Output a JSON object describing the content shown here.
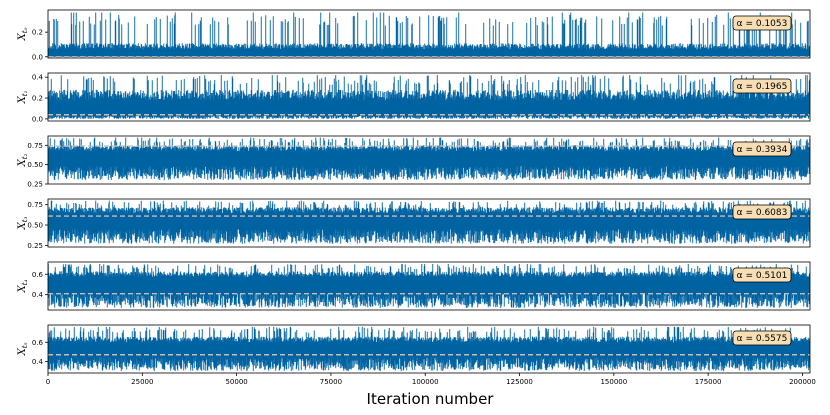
{
  "chart_data": {
    "type": "line",
    "xlabel": "Iteration number",
    "x_range": [
      0,
      202000
    ],
    "x_ticks": [
      0,
      25000,
      50000,
      75000,
      100000,
      125000,
      150000,
      175000,
      200000
    ],
    "x_tick_labels": [
      "0",
      "25000",
      "50000",
      "75000",
      "100000",
      "125000",
      "150000",
      "175000",
      "200000"
    ],
    "line_color": "#0063a1",
    "ref_line_color": "#bfbfbf",
    "annotation_face": "#f7deb4",
    "panels": [
      {
        "ylabel": "X",
        "subscript": "t₀",
        "annotation": "α = 0.1053",
        "ylim": [
          -0.01,
          0.38
        ],
        "yticks": [
          0.0,
          0.2
        ],
        "ytick_labels": [
          "0.0",
          "0.2"
        ],
        "ref_value": 0.0,
        "trace": {
          "base": 0.0,
          "low": 0.0,
          "high": 0.34,
          "typical_high": 0.11,
          "spike_max": 0.36
        }
      },
      {
        "ylabel": "X",
        "subscript": "t₁",
        "annotation": "α = 0.1965",
        "ylim": [
          -0.02,
          0.44
        ],
        "yticks": [
          0.0,
          0.2,
          0.4
        ],
        "ytick_labels": [
          "0.0",
          "0.2",
          "0.4"
        ],
        "ref_value": 0.04,
        "trace": {
          "base": 0.05,
          "low": 0.0,
          "high": 0.42,
          "typical_high": 0.28,
          "spike_max": 0.42
        }
      },
      {
        "ylabel": "X",
        "subscript": "t₂",
        "annotation": "α = 0.3934",
        "ylim": [
          0.25,
          0.87
        ],
        "yticks": [
          0.25,
          0.5,
          0.75
        ],
        "ytick_labels": [
          "0.25",
          "0.50",
          "0.75"
        ],
        "ref_value": 0.74,
        "trace": {
          "base": 0.58,
          "low": 0.3,
          "high": 0.85,
          "typical_high": 0.75,
          "spike_max": 0.85
        }
      },
      {
        "ylabel": "X",
        "subscript": "t₃",
        "annotation": "α = 0.6083",
        "ylim": [
          0.23,
          0.82
        ],
        "yticks": [
          0.25,
          0.5,
          0.75
        ],
        "ytick_labels": [
          "0.25",
          "0.50",
          "0.75"
        ],
        "ref_value": 0.61,
        "trace": {
          "base": 0.55,
          "low": 0.27,
          "high": 0.8,
          "typical_high": 0.72,
          "spike_max": 0.8
        }
      },
      {
        "ylabel": "X",
        "subscript": "t₄",
        "annotation": "α = 0.5101",
        "ylim": [
          0.25,
          0.72
        ],
        "yticks": [
          0.4,
          0.6
        ],
        "ytick_labels": [
          "0.4",
          "0.6"
        ],
        "ref_value": 0.41,
        "trace": {
          "base": 0.5,
          "low": 0.27,
          "high": 0.7,
          "typical_high": 0.63,
          "spike_max": 0.7
        }
      },
      {
        "ylabel": "X",
        "subscript": "t₅",
        "annotation": "α = 0.5575",
        "ylim": [
          0.28,
          0.78
        ],
        "yticks": [
          0.4,
          0.6
        ],
        "ytick_labels": [
          "0.4",
          "0.6"
        ],
        "ref_value": 0.47,
        "trace": {
          "base": 0.52,
          "low": 0.3,
          "high": 0.76,
          "typical_high": 0.66,
          "spike_max": 0.76
        }
      }
    ]
  }
}
